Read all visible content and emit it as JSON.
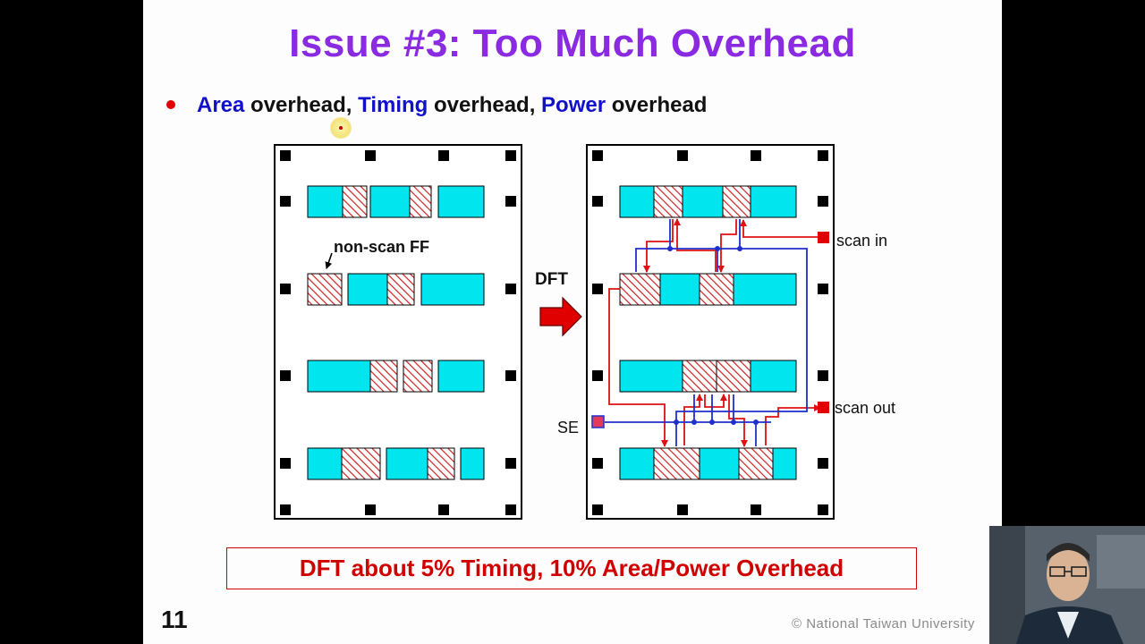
{
  "slide": {
    "title": "Issue #3: Too Much Overhead",
    "bullet": {
      "area": "Area",
      "sep1": " overhead, ",
      "timing": "Timing",
      "sep2": " overhead, ",
      "power": "Power",
      "sep3": " overhead"
    },
    "diagram": {
      "nonscan_label": "non-scan FF",
      "dft_label": "DFT",
      "scan_in_label": "scan in",
      "scan_out_label": "scan out",
      "se_label": "SE"
    },
    "summary": "DFT about 5% Timing, 10% Area/Power Overhead",
    "page_number": "11",
    "copyright": "© National  Taiwan  University"
  },
  "colors": {
    "title": "#8a2be2",
    "keyword": "#1111cc",
    "logic_block": "#00e5ee",
    "flipflop_hatch": "#cc2222",
    "scan_wire": "#dd1111",
    "enable_wire": "#1f2fcc",
    "summary": "#d00000"
  },
  "webcam": {
    "description_icon": "presenter-video-feed"
  }
}
